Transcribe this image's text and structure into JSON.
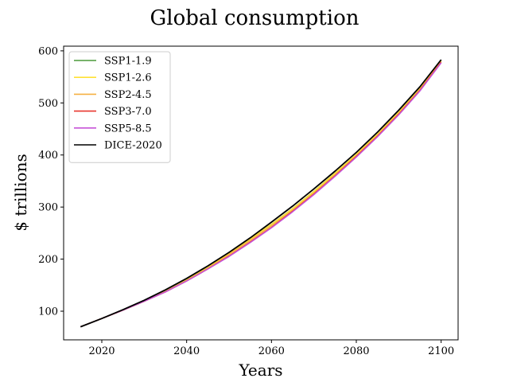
{
  "chart_data": {
    "type": "line",
    "title": "Global consumption",
    "xlabel": "Years",
    "ylabel": "$ trillions",
    "xlim": [
      2011,
      2104
    ],
    "ylim": [
      45,
      609
    ],
    "x_ticks": [
      2020,
      2040,
      2060,
      2080,
      2100
    ],
    "y_ticks": [
      100,
      200,
      300,
      400,
      500,
      600
    ],
    "grid": false,
    "legend": "top-left",
    "x": [
      2015,
      2020,
      2025,
      2030,
      2035,
      2040,
      2045,
      2050,
      2055,
      2060,
      2065,
      2070,
      2075,
      2080,
      2085,
      2090,
      2095,
      2100
    ],
    "series": [
      {
        "name": "SSP1-1.9",
        "color": "#4a9a3a",
        "values": [
          70,
          86,
          102,
          119,
          138,
          160,
          184,
          211,
          239,
          267,
          297,
          330,
          365,
          401,
          440,
          482,
          527,
          581
        ]
      },
      {
        "name": "SSP1-2.6",
        "color": "#ffe135",
        "values": [
          70,
          86,
          102,
          119,
          138,
          160,
          184,
          211,
          239,
          267,
          297,
          330,
          365,
          401,
          440,
          482,
          527,
          581
        ]
      },
      {
        "name": "SSP2-4.5",
        "color": "#f5b042",
        "values": [
          70,
          86,
          102,
          119,
          138,
          159,
          183,
          209,
          236,
          264,
          294,
          327,
          362,
          399,
          438,
          480,
          526,
          580
        ]
      },
      {
        "name": "SSP3-7.0",
        "color": "#e8362e",
        "values": [
          70,
          86,
          102,
          119,
          137,
          158,
          181,
          206,
          233,
          261,
          292,
          325,
          360,
          397,
          436,
          478,
          524,
          578
        ]
      },
      {
        "name": "SSP5-8.5",
        "color": "#c653d8",
        "values": [
          70,
          86,
          102,
          119,
          137,
          158,
          181,
          205,
          232,
          260,
          291,
          324,
          359,
          396,
          435,
          477,
          523,
          577
        ]
      },
      {
        "name": "DICE-2020",
        "color": "#000000",
        "values": [
          70,
          86,
          103,
          121,
          141,
          163,
          187,
          213,
          241,
          271,
          302,
          335,
          369,
          405,
          444,
          486,
          531,
          583
        ]
      }
    ]
  }
}
